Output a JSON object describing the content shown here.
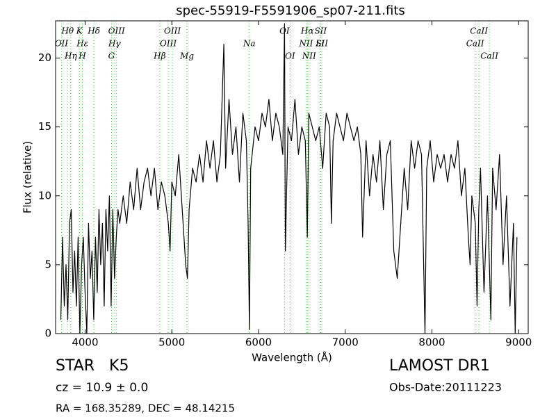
{
  "chart_data": {
    "type": "line",
    "title": "spec-55919-F5591906_sp07-211.fits",
    "x_label": "Wavelength (Å)",
    "y_label": "Flux (relative)",
    "object": "STAR   K5",
    "redshift": "cz = 10.9 ± 0.0",
    "coords": "RA = 168.35289, DEC = 48.14215",
    "survey": "LAMOST DR1",
    "obs_date": "Obs-Date:20111223",
    "color": "#000000",
    "x": [
      3720,
      3740,
      3760,
      3780,
      3800,
      3820,
      3840,
      3860,
      3880,
      3900,
      3920,
      3940,
      3960,
      3980,
      4000,
      4020,
      4040,
      4060,
      4080,
      4100,
      4120,
      4140,
      4160,
      4180,
      4200,
      4220,
      4240,
      4260,
      4280,
      4300,
      4320,
      4340,
      4360,
      4380,
      4400,
      4440,
      4480,
      4520,
      4560,
      4600,
      4640,
      4680,
      4720,
      4760,
      4800,
      4840,
      4880,
      4920,
      4960,
      4980,
      5000,
      5040,
      5080,
      5120,
      5160,
      5180,
      5200,
      5240,
      5280,
      5320,
      5360,
      5400,
      5440,
      5480,
      5520,
      5560,
      5600,
      5620,
      5660,
      5700,
      5740,
      5780,
      5820,
      5860,
      5880,
      5895,
      5910,
      5960,
      6000,
      6040,
      6080,
      6120,
      6160,
      6200,
      6240,
      6280,
      6300,
      6310,
      6340,
      6380,
      6420,
      6460,
      6500,
      6540,
      6563,
      6580,
      6620,
      6660,
      6700,
      6740,
      6780,
      6820,
      6840,
      6860,
      6900,
      6940,
      6980,
      7020,
      7060,
      7100,
      7140,
      7180,
      7200,
      7240,
      7280,
      7320,
      7360,
      7400,
      7440,
      7480,
      7520,
      7560,
      7600,
      7640,
      7680,
      7720,
      7760,
      7800,
      7840,
      7880,
      7920,
      7940,
      7980,
      8020,
      8060,
      8100,
      8140,
      8180,
      8220,
      8260,
      8300,
      8340,
      8380,
      8420,
      8440,
      8460,
      8500,
      8520,
      8540,
      8560,
      8600,
      8640,
      8680,
      8700,
      8740,
      8780,
      8820,
      8860,
      8900,
      8940,
      8960,
      8980
    ],
    "values": [
      1,
      7,
      2,
      5,
      1,
      8,
      9,
      3,
      6,
      2,
      7,
      0,
      5,
      7,
      3,
      0,
      8,
      4,
      6,
      1,
      7,
      3,
      9,
      5,
      8,
      2,
      9,
      6,
      10,
      2,
      9,
      4,
      7,
      9,
      8,
      10,
      8,
      11,
      9,
      12,
      9,
      11,
      12,
      10,
      12,
      9,
      11,
      10,
      8,
      6,
      11,
      10,
      13,
      9,
      5,
      4,
      9,
      12,
      11,
      13,
      11,
      14,
      12,
      14,
      11,
      13,
      21,
      12,
      17,
      13,
      15,
      11,
      16,
      14,
      8,
      0.3,
      12,
      15,
      14,
      16,
      15,
      17,
      14,
      16,
      15,
      13,
      22.5,
      6,
      15,
      14,
      17,
      13,
      15,
      14,
      7,
      16,
      15,
      14,
      15,
      12,
      16,
      15,
      8,
      14,
      16,
      15,
      14,
      16,
      15,
      14,
      15,
      13,
      7,
      14,
      10,
      13,
      11,
      14,
      9,
      13,
      14,
      6,
      4,
      8,
      12,
      9,
      14,
      12,
      14,
      13,
      0,
      12,
      14,
      11,
      13,
      12,
      13,
      11,
      13,
      12,
      14,
      10,
      12,
      7,
      5,
      10,
      8,
      2,
      9,
      12,
      3,
      10,
      1,
      12,
      9,
      13,
      5,
      10,
      2,
      8,
      0,
      7
    ],
    "line_color": "#66bb66",
    "lines": [
      {
        "label": "Hθ",
        "x": 3798
      },
      {
        "label": "OII",
        "x": 3727
      },
      {
        "label": "Hη",
        "x": 3835
      },
      {
        "label": "K",
        "x": 3934
      },
      {
        "label": "Hε",
        "x": 3970
      },
      {
        "label": "H",
        "x": 3968
      },
      {
        "label": "Hδ",
        "x": 4102
      },
      {
        "label": "Hγ",
        "x": 4340
      },
      {
        "label": "G",
        "x": 4305
      },
      {
        "label": "OIII",
        "x": 4363
      },
      {
        "label": "OIII",
        "x": 4959
      },
      {
        "label": "Hβ",
        "x": 4861
      },
      {
        "label": "OIII",
        "x": 5007
      },
      {
        "label": "Na",
        "x": 5894
      },
      {
        "label": "Mg",
        "x": 5175
      },
      {
        "label": "OI",
        "x": 6300
      },
      {
        "label": "NII",
        "x": 6548
      },
      {
        "label": "OI",
        "x": 6364
      },
      {
        "label": "Hα",
        "x": 6563
      },
      {
        "label": "Li",
        "x": 6708
      },
      {
        "label": "NII",
        "x": 6583
      },
      {
        "label": "SII",
        "x": 6716
      },
      {
        "label": "SII",
        "x": 6731
      },
      {
        "label": "CaII",
        "x": 8662
      },
      {
        "label": "CaII",
        "x": 8542
      },
      {
        "label": "CaII",
        "x": 8498
      }
    ],
    "xlim": [
      3660,
      9110
    ],
    "ylim": [
      0,
      22.7
    ],
    "xticks": [
      4000,
      5000,
      6000,
      7000,
      8000,
      9000
    ],
    "yticks": [
      0,
      5,
      10,
      15,
      20
    ]
  }
}
